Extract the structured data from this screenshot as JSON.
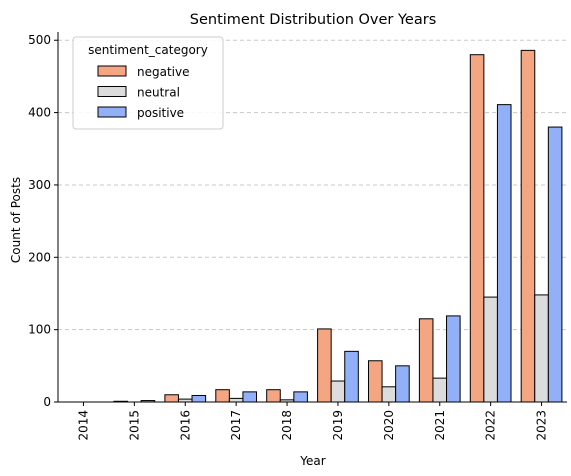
{
  "chart_data": {
    "type": "bar",
    "title": "Sentiment Distribution Over Years",
    "xlabel": "Year",
    "ylabel": "Count of Posts",
    "categories": [
      "2014",
      "2015",
      "2016",
      "2017",
      "2018",
      "2019",
      "2020",
      "2021",
      "2022",
      "2023"
    ],
    "ylim": [
      0,
      510
    ],
    "yticks": [
      0,
      100,
      200,
      300,
      400,
      500
    ],
    "grid": "horizontal dashed",
    "legend": {
      "title": "sentiment_category",
      "placement": "top-left"
    },
    "series": [
      {
        "name": "negative",
        "color": "#f4a582",
        "values": [
          0,
          1,
          10,
          17,
          17,
          101,
          57,
          115,
          480,
          486
        ]
      },
      {
        "name": "neutral",
        "color": "#dcdcdc",
        "values": [
          0,
          0,
          4,
          5,
          3,
          29,
          21,
          33,
          145,
          148
        ]
      },
      {
        "name": "positive",
        "color": "#92b0f8",
        "values": [
          0,
          2,
          9,
          14,
          14,
          70,
          50,
          119,
          411,
          380
        ]
      }
    ]
  }
}
